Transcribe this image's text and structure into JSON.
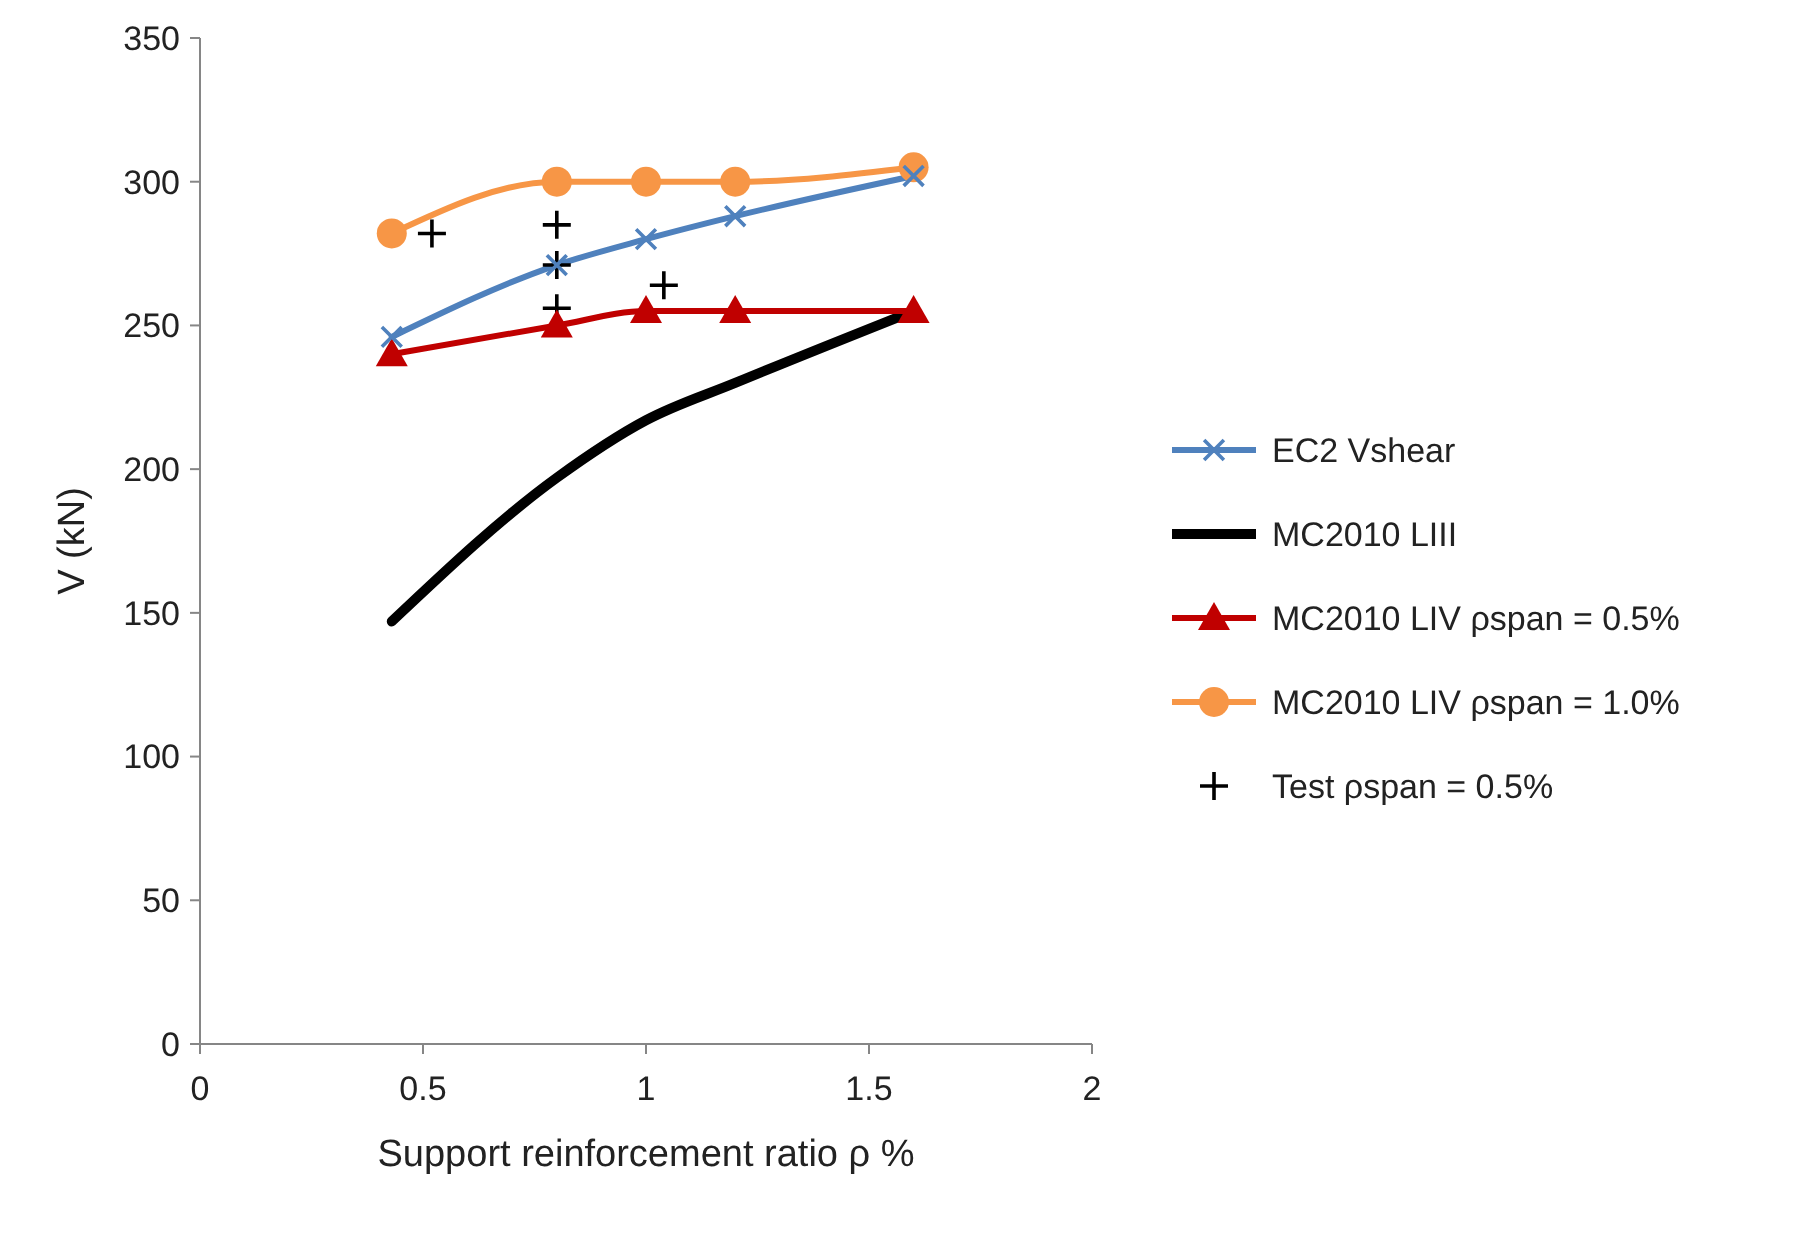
{
  "chart_data": {
    "type": "line",
    "xlabel": "Support reinforcement ratio ρ %",
    "ylabel": "V (kN)",
    "xlim": [
      0,
      2
    ],
    "xticks": [
      0,
      0.5,
      1,
      1.5,
      2
    ],
    "ylim": [
      0,
      350
    ],
    "yticks": [
      0,
      50,
      100,
      150,
      200,
      250,
      300,
      350
    ],
    "grid": false,
    "legend": "right",
    "line_style": "solid",
    "series": [
      {
        "name": "EC2 Vshear",
        "color": "#4f81bd",
        "marker": "cross",
        "x": [
          0.43,
          0.8,
          1.0,
          1.2,
          1.6
        ],
        "values": [
          246,
          271,
          280,
          288,
          302
        ]
      },
      {
        "name": "MC2010 LIII",
        "color": "#000000",
        "marker": "none",
        "x": [
          0.43,
          0.8,
          1.0,
          1.2,
          1.6
        ],
        "values": [
          147,
          197,
          217,
          230,
          255
        ]
      },
      {
        "name": "MC2010 LIV ρspan = 0.5%",
        "color": "#c00000",
        "marker": "triangle",
        "x": [
          0.43,
          0.8,
          1.0,
          1.2,
          1.6
        ],
        "values": [
          240,
          250,
          255,
          255,
          255
        ]
      },
      {
        "name": "MC2010 LIV ρspan = 1.0%",
        "color": "#f79646",
        "marker": "circle",
        "x": [
          0.43,
          0.8,
          1.0,
          1.2,
          1.6
        ],
        "values": [
          282,
          300,
          300,
          300,
          305
        ]
      },
      {
        "name": "Test ρspan = 0.5%",
        "type": "scatter",
        "color": "#000000",
        "marker": "cross",
        "x": [
          0.52,
          0.8,
          0.8,
          0.8,
          1.04
        ],
        "values": [
          282,
          285,
          271,
          256,
          264
        ]
      }
    ]
  }
}
